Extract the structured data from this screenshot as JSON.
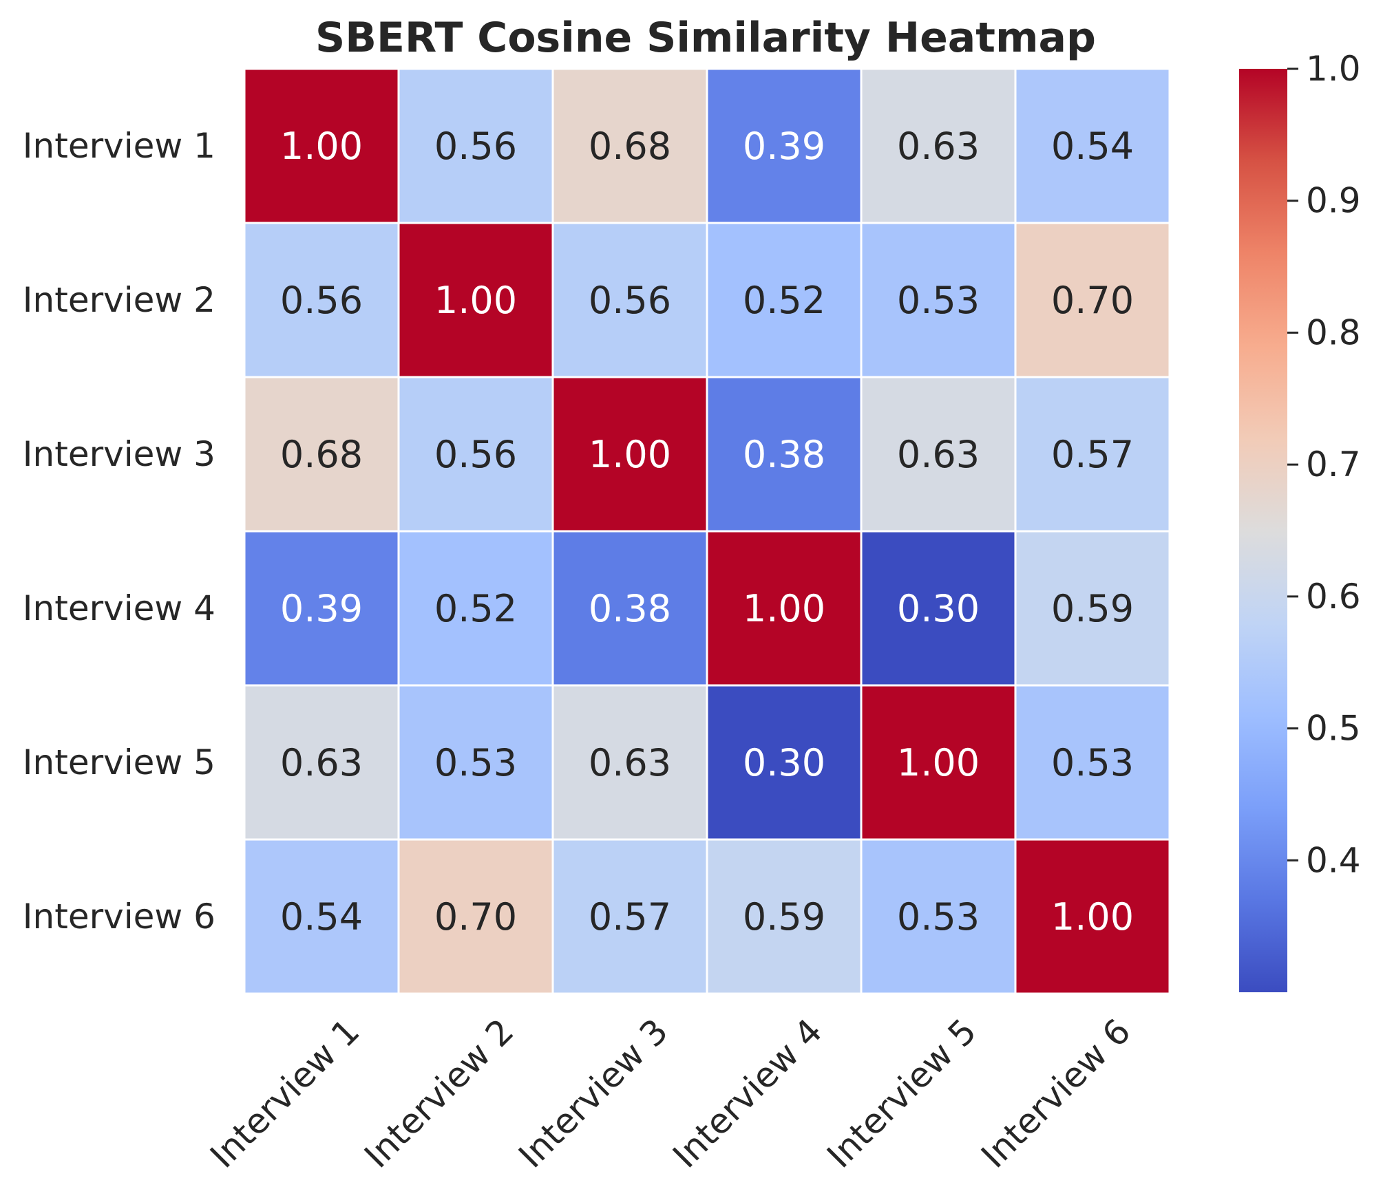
{
  "chart_data": {
    "type": "heatmap",
    "title": "SBERT Cosine Similarity Heatmap",
    "row_labels": [
      "Interview 1",
      "Interview 2",
      "Interview 3",
      "Interview 4",
      "Interview 5",
      "Interview 6"
    ],
    "col_labels": [
      "Interview 1",
      "Interview 2",
      "Interview 3",
      "Interview 4",
      "Interview 5",
      "Interview 6"
    ],
    "values": [
      [
        1.0,
        0.56,
        0.68,
        0.39,
        0.63,
        0.54
      ],
      [
        0.56,
        1.0,
        0.56,
        0.52,
        0.53,
        0.7
      ],
      [
        0.68,
        0.56,
        1.0,
        0.38,
        0.63,
        0.57
      ],
      [
        0.39,
        0.52,
        0.38,
        1.0,
        0.3,
        0.59
      ],
      [
        0.63,
        0.53,
        0.63,
        0.3,
        1.0,
        0.53
      ],
      [
        0.54,
        0.7,
        0.57,
        0.59,
        0.53,
        1.0
      ]
    ],
    "value_format": "0.00",
    "colormap": "coolwarm",
    "colormap_stops": [
      "#3b4cc0",
      "#5977e3",
      "#7b9ff9",
      "#9ebeff",
      "#c0d4f5",
      "#dddcdc",
      "#f2cbb7",
      "#f7ac8e",
      "#ee8468",
      "#d65244",
      "#b40426"
    ],
    "vmin": 0.3,
    "vmax": 1.0,
    "colorbar": {
      "ticks": [
        0.4,
        0.5,
        0.6,
        0.7,
        0.8,
        0.9,
        1.0
      ],
      "tick_labels": [
        "0.4",
        "0.5",
        "0.6",
        "0.7",
        "0.8",
        "0.9",
        "1.0"
      ]
    },
    "cell_border_color": "#ffffff",
    "text_colors": {
      "dark": "#262626",
      "light": "#ffffff"
    }
  }
}
